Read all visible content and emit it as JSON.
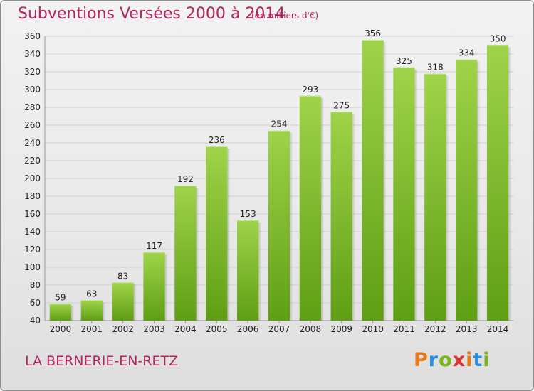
{
  "title": "Subventions Versées 2000 à 2014",
  "unit": "(en milliers d'€)",
  "commune": "LA BERNERIE-EN-RETZ",
  "logo": {
    "letters": [
      "P",
      "r",
      "o",
      "x",
      "i",
      "t",
      "i"
    ],
    "colors": [
      "#e87a1c",
      "#2f8fd6",
      "#7ab51d",
      "#e0312f",
      "#e87a1c",
      "#2f8fd6",
      "#7ab51d"
    ]
  },
  "colors": {
    "title": "#b2245e",
    "bar_top": "#9fd34a",
    "bar_bottom": "#5f9e13",
    "grid": "#d0d0d0"
  },
  "chart_data": {
    "type": "bar",
    "title": "Subventions Versées 2000 à 2014",
    "categories": [
      "2000",
      "2001",
      "2002",
      "2003",
      "2004",
      "2005",
      "2006",
      "2007",
      "2008",
      "2009",
      "2010",
      "2011",
      "2012",
      "2013",
      "2014"
    ],
    "values": [
      59,
      63,
      83,
      117,
      192,
      236,
      153,
      254,
      293,
      275,
      356,
      325,
      318,
      334,
      350
    ],
    "ylim": [
      40,
      360
    ],
    "yticks": [
      40,
      60,
      80,
      100,
      120,
      140,
      160,
      180,
      200,
      220,
      240,
      260,
      280,
      300,
      320,
      340,
      360
    ],
    "grid": true,
    "xlabel": "",
    "ylabel": ""
  }
}
